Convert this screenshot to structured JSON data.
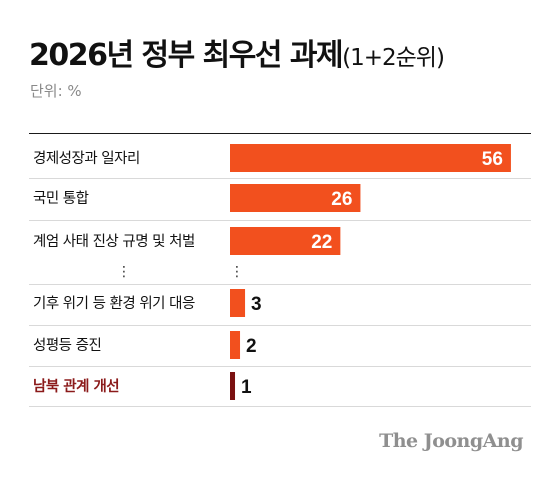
{
  "title": "2026년 정부 최우선 과제",
  "subtitle": "(1+2순위)",
  "unit_label": "단위: %",
  "source": "The JoongAng",
  "colors": {
    "bar": "#f2501e",
    "bar_highlight": "#7a1010",
    "label_highlight": "#8b1a1a",
    "text": "#111111",
    "value_inside": "#ffffff"
  },
  "ellipsis": "⋮",
  "chart_data": {
    "type": "bar",
    "orientation": "horizontal",
    "categories": [
      "경제성장과 일자리",
      "국민 통합",
      "계엄 사태 진상 규명 및 처벌",
      "기후 위기 등 환경 위기 대응",
      "성평등 증진",
      "남북 관계 개선"
    ],
    "values": [
      56,
      26,
      22,
      3,
      2,
      1
    ],
    "value_labels": [
      "56",
      "26",
      "22",
      "3",
      "2",
      "1"
    ],
    "highlight_index": 5,
    "gap_after_index": 2,
    "xlim": [
      0,
      60
    ]
  }
}
